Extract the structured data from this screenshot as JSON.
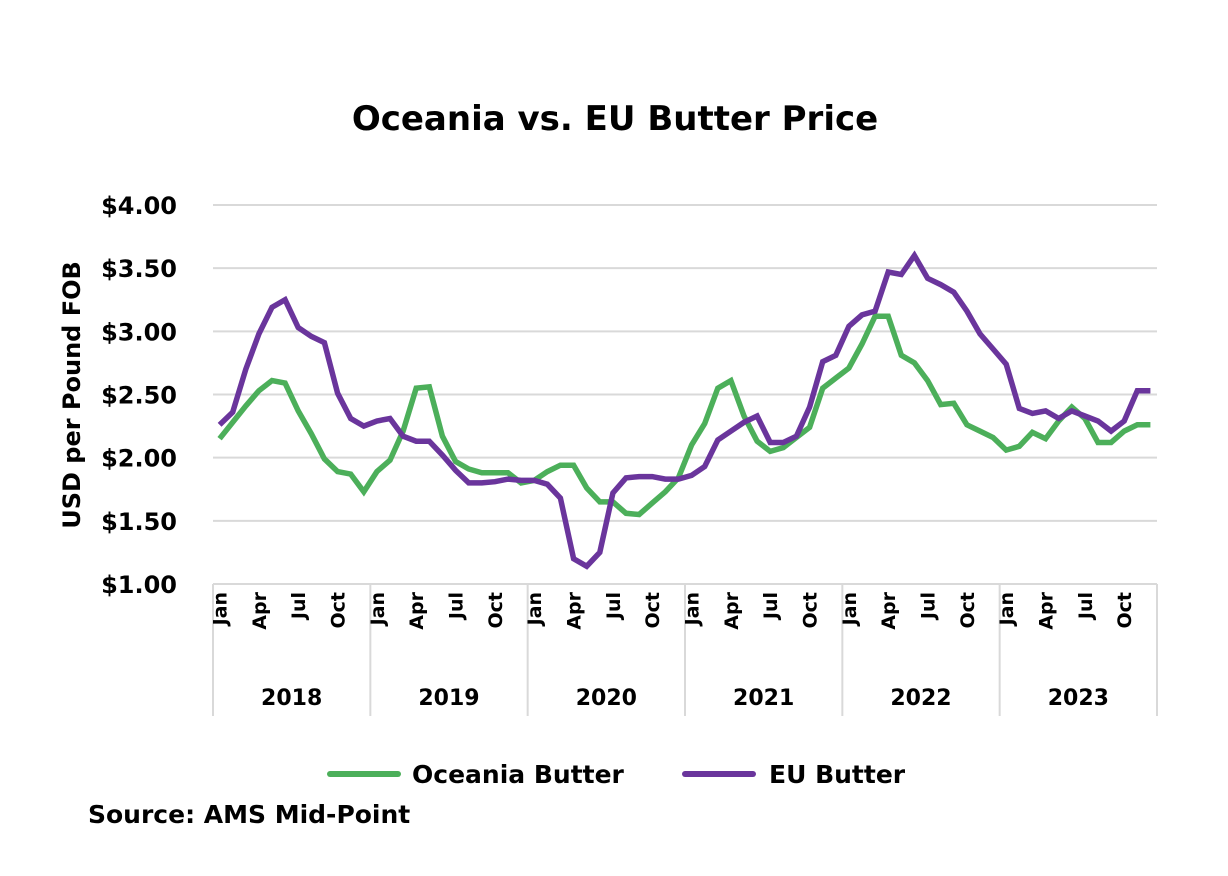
{
  "chart_data": {
    "type": "line",
    "title": "Oceania vs. EU Butter Price",
    "xlabel": "",
    "ylabel": "USD per Pound FOB",
    "ylim": [
      1.0,
      4.0
    ],
    "yticks": [
      1.0,
      1.5,
      2.0,
      2.5,
      3.0,
      3.5,
      4.0
    ],
    "ytick_labels": [
      "$1.00",
      "$1.50",
      "$2.00",
      "$2.50",
      "$3.00",
      "$3.50",
      "$4.00"
    ],
    "grid": true,
    "legend_position": "bottom",
    "source": "Source: AMS Mid-Point",
    "years": [
      "2018",
      "2019",
      "2020",
      "2021",
      "2022",
      "2023"
    ],
    "month_tick_labels": [
      "Jan",
      "Apr",
      "Jul",
      "Oct"
    ],
    "month_tick_indices": [
      0,
      3,
      6,
      9
    ],
    "x": [
      "2018-01",
      "2018-02",
      "2018-03",
      "2018-04",
      "2018-05",
      "2018-06",
      "2018-07",
      "2018-08",
      "2018-09",
      "2018-10",
      "2018-11",
      "2018-12",
      "2019-01",
      "2019-02",
      "2019-03",
      "2019-04",
      "2019-05",
      "2019-06",
      "2019-07",
      "2019-08",
      "2019-09",
      "2019-10",
      "2019-11",
      "2019-12",
      "2020-01",
      "2020-02",
      "2020-03",
      "2020-04",
      "2020-05",
      "2020-06",
      "2020-07",
      "2020-08",
      "2020-09",
      "2020-10",
      "2020-11",
      "2020-12",
      "2021-01",
      "2021-02",
      "2021-03",
      "2021-04",
      "2021-05",
      "2021-06",
      "2021-07",
      "2021-08",
      "2021-09",
      "2021-10",
      "2021-11",
      "2021-12",
      "2022-01",
      "2022-02",
      "2022-03",
      "2022-04",
      "2022-05",
      "2022-06",
      "2022-07",
      "2022-08",
      "2022-09",
      "2022-10",
      "2022-11",
      "2022-12",
      "2023-01",
      "2023-02",
      "2023-03",
      "2023-04",
      "2023-05",
      "2023-06",
      "2023-07",
      "2023-08",
      "2023-09",
      "2023-10",
      "2023-11",
      "2023-12"
    ],
    "series": [
      {
        "name": "Oceania Butter",
        "color": "#4caf5a",
        "values": [
          2.15,
          2.28,
          2.41,
          2.53,
          2.61,
          2.59,
          2.37,
          2.19,
          1.99,
          1.89,
          1.87,
          1.73,
          1.89,
          1.98,
          2.21,
          2.55,
          2.56,
          2.17,
          1.97,
          1.91,
          1.88,
          1.88,
          1.88,
          1.8,
          1.82,
          1.89,
          1.94,
          1.94,
          1.76,
          1.65,
          1.65,
          1.56,
          1.55,
          1.64,
          1.73,
          1.84,
          2.1,
          2.27,
          2.55,
          2.61,
          2.33,
          2.13,
          2.05,
          2.08,
          2.16,
          2.24,
          2.55,
          2.63,
          2.71,
          2.9,
          3.12,
          3.12,
          2.81,
          2.75,
          2.61,
          2.42,
          2.43,
          2.26,
          2.21,
          2.16,
          2.06,
          2.09,
          2.2,
          2.15,
          2.29,
          2.4,
          2.31,
          2.12,
          2.12,
          2.21,
          2.26,
          2.26
        ]
      },
      {
        "name": "EU Butter",
        "color": "#6a359c",
        "values": [
          2.26,
          2.36,
          2.7,
          2.98,
          3.19,
          3.25,
          3.03,
          2.96,
          2.91,
          2.51,
          2.31,
          2.25,
          2.29,
          2.31,
          2.17,
          2.13,
          2.13,
          2.02,
          1.9,
          1.8,
          1.8,
          1.81,
          1.83,
          1.82,
          1.82,
          1.79,
          1.68,
          1.2,
          1.14,
          1.25,
          1.72,
          1.84,
          1.85,
          1.85,
          1.83,
          1.83,
          1.86,
          1.93,
          2.14,
          2.21,
          2.28,
          2.33,
          2.12,
          2.12,
          2.17,
          2.4,
          2.76,
          2.81,
          3.04,
          3.13,
          3.16,
          3.47,
          3.45,
          3.6,
          3.42,
          3.37,
          3.31,
          3.16,
          2.98,
          2.86,
          2.74,
          2.39,
          2.35,
          2.37,
          2.31,
          2.37,
          2.33,
          2.29,
          2.21,
          2.29,
          2.53,
          2.53
        ]
      }
    ]
  }
}
